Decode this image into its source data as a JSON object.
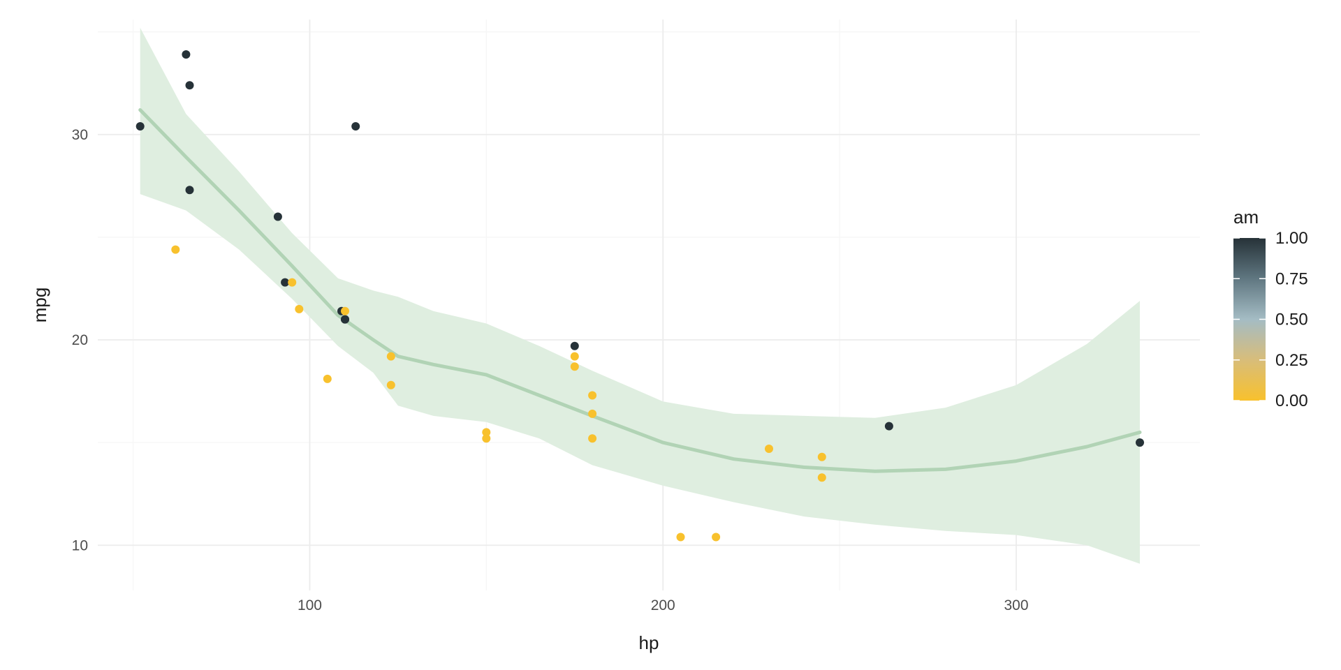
{
  "chart_data": {
    "type": "scatter",
    "title": "",
    "xlabel": "hp",
    "ylabel": "mpg",
    "xlim": [
      40,
      352
    ],
    "ylim": [
      7.8,
      35.6
    ],
    "x_ticks": [
      100,
      200,
      300
    ],
    "y_ticks": [
      10,
      20,
      30
    ],
    "grid": true,
    "points": [
      {
        "hp": 52,
        "mpg": 30.4,
        "am": 1
      },
      {
        "hp": 62,
        "mpg": 24.4,
        "am": 0
      },
      {
        "hp": 65,
        "mpg": 33.9,
        "am": 1
      },
      {
        "hp": 66,
        "mpg": 32.4,
        "am": 1
      },
      {
        "hp": 66,
        "mpg": 27.3,
        "am": 1
      },
      {
        "hp": 91,
        "mpg": 26.0,
        "am": 1
      },
      {
        "hp": 93,
        "mpg": 22.8,
        "am": 1
      },
      {
        "hp": 95,
        "mpg": 22.8,
        "am": 0
      },
      {
        "hp": 97,
        "mpg": 21.5,
        "am": 0
      },
      {
        "hp": 105,
        "mpg": 18.1,
        "am": 0
      },
      {
        "hp": 109,
        "mpg": 21.4,
        "am": 1
      },
      {
        "hp": 110,
        "mpg": 21.0,
        "am": 1
      },
      {
        "hp": 110,
        "mpg": 21.0,
        "am": 1
      },
      {
        "hp": 110,
        "mpg": 21.4,
        "am": 0
      },
      {
        "hp": 113,
        "mpg": 30.4,
        "am": 1
      },
      {
        "hp": 123,
        "mpg": 19.2,
        "am": 0
      },
      {
        "hp": 123,
        "mpg": 17.8,
        "am": 0
      },
      {
        "hp": 150,
        "mpg": 15.5,
        "am": 0
      },
      {
        "hp": 150,
        "mpg": 15.2,
        "am": 0
      },
      {
        "hp": 175,
        "mpg": 19.7,
        "am": 1
      },
      {
        "hp": 175,
        "mpg": 19.2,
        "am": 0
      },
      {
        "hp": 175,
        "mpg": 18.7,
        "am": 0
      },
      {
        "hp": 180,
        "mpg": 17.3,
        "am": 0
      },
      {
        "hp": 180,
        "mpg": 16.4,
        "am": 0
      },
      {
        "hp": 180,
        "mpg": 15.2,
        "am": 0
      },
      {
        "hp": 205,
        "mpg": 10.4,
        "am": 0
      },
      {
        "hp": 215,
        "mpg": 10.4,
        "am": 0
      },
      {
        "hp": 230,
        "mpg": 14.7,
        "am": 0
      },
      {
        "hp": 245,
        "mpg": 14.3,
        "am": 0
      },
      {
        "hp": 245,
        "mpg": 13.3,
        "am": 0
      },
      {
        "hp": 264,
        "mpg": 15.8,
        "am": 1
      },
      {
        "hp": 335,
        "mpg": 15.0,
        "am": 1
      }
    ],
    "smooth": {
      "method": "loess",
      "color": "#b1d3b5",
      "band_color": "#dfeee0",
      "x": [
        52,
        65,
        80,
        95,
        108,
        118,
        125,
        135,
        150,
        165,
        180,
        200,
        220,
        240,
        260,
        280,
        300,
        320,
        335
      ],
      "y": [
        31.2,
        28.9,
        26.3,
        23.6,
        21.2,
        20.0,
        19.2,
        18.8,
        18.3,
        17.3,
        16.3,
        15.0,
        14.2,
        13.8,
        13.6,
        13.7,
        14.1,
        14.8,
        15.5
      ],
      "upper": [
        35.2,
        31.0,
        28.2,
        25.2,
        23.0,
        22.4,
        22.1,
        21.4,
        20.8,
        19.7,
        18.5,
        17.0,
        16.4,
        16.3,
        16.2,
        16.7,
        17.8,
        19.8,
        21.9
      ],
      "lower": [
        27.1,
        26.3,
        24.4,
        22.0,
        19.7,
        18.4,
        16.8,
        16.3,
        16.0,
        15.2,
        13.9,
        12.9,
        12.1,
        11.4,
        11.0,
        10.7,
        10.5,
        10.0,
        9.1
      ]
    },
    "color_scale": {
      "variable": "am",
      "stops": [
        {
          "value": 0.0,
          "color": "#f8c12d"
        },
        {
          "value": 0.25,
          "color": "#d8bd7a"
        },
        {
          "value": 0.5,
          "color": "#a4bcc4"
        },
        {
          "value": 0.75,
          "color": "#607781"
        },
        {
          "value": 1.0,
          "color": "#263238"
        }
      ]
    },
    "legend": {
      "title": "am",
      "labels": [
        "1.00",
        "0.75",
        "0.50",
        "0.25",
        "0.00"
      ],
      "values": [
        1.0,
        0.75,
        0.5,
        0.25,
        0.0
      ],
      "placement": "right"
    }
  }
}
